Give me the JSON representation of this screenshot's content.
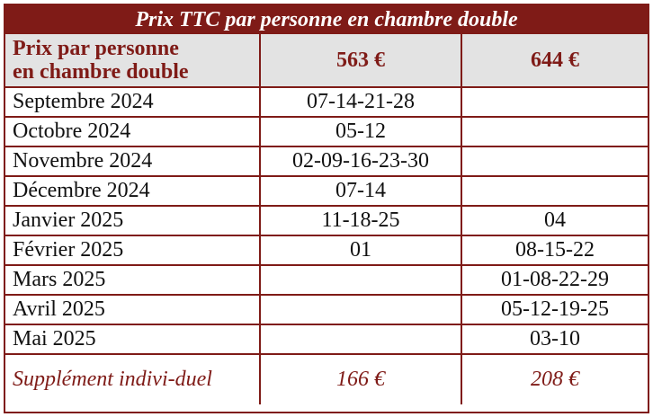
{
  "title": "Prix TTC par personne en chambre double",
  "header": {
    "label_line1": "Prix par personne",
    "label_line2": "en chambre double",
    "price_a": "563 €",
    "price_b": "644 €"
  },
  "rows": [
    {
      "month": "Septembre 2024",
      "a": "07-14-21-28",
      "b": ""
    },
    {
      "month": "Octobre 2024",
      "a": "05-12",
      "b": ""
    },
    {
      "month": "Novembre 2024",
      "a": "02-09-16-23-30",
      "b": ""
    },
    {
      "month": "Décembre 2024",
      "a": "07-14",
      "b": ""
    },
    {
      "month": "Janvier 2025",
      "a": "11-18-25",
      "b": "04"
    },
    {
      "month": "Février 2025",
      "a": "01",
      "b": "08-15-22"
    },
    {
      "month": "Mars 2025",
      "a": "",
      "b": "01-08-22-29"
    },
    {
      "month": "Avril 2025",
      "a": "",
      "b": "05-12-19-25"
    },
    {
      "month": "Mai 2025",
      "a": "",
      "b": "03-10"
    }
  ],
  "supplement": {
    "label": "Supplément indivi-duel",
    "a": "166 €",
    "b": "208 €"
  }
}
